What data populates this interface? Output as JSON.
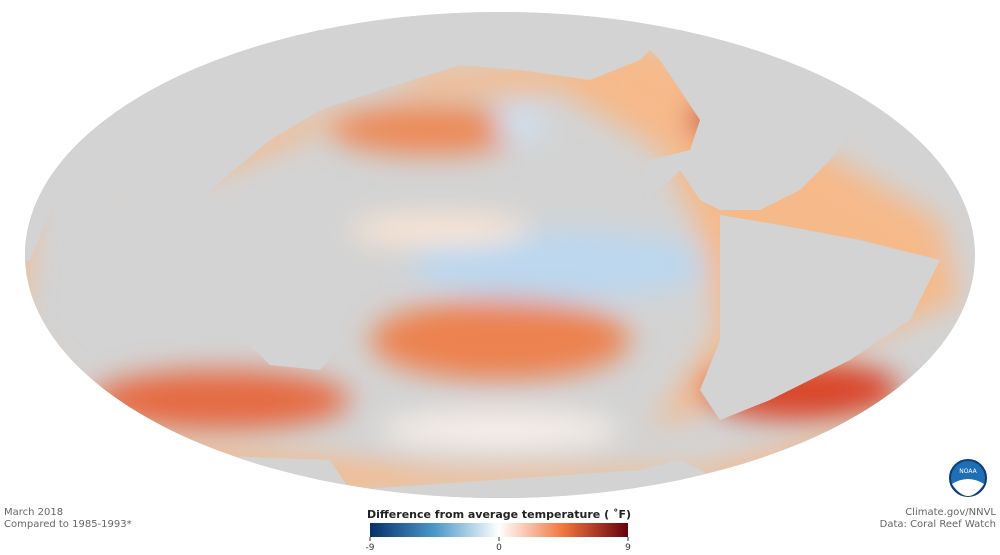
{
  "footer_left": {
    "date": "March 2018",
    "baseline": "Compared to 1985-1993*"
  },
  "footer_right": {
    "source": "Climate.gov/NNVL",
    "data": "Data: Coral Reef Watch"
  },
  "legend": {
    "title": "Difference from average temperature ( ˚F)",
    "range": [
      -9,
      9
    ],
    "ticks": [
      -9,
      0,
      9
    ]
  }
}
